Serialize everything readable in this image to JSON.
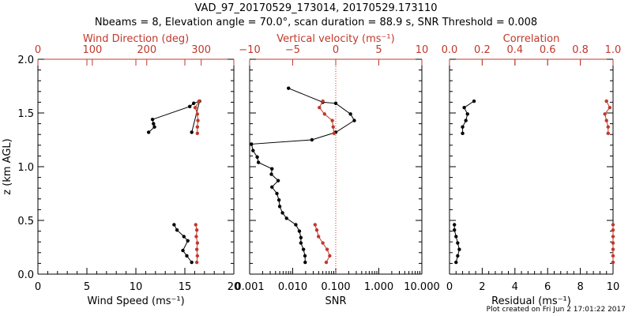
{
  "title_line1": "VAD_97_20170529_173014, 20170529.173110",
  "title_line2": "Nbeams = 8, Elevation angle = 70.0°, scan duration = 88.9 s, SNR Threshold = 0.008",
  "footer": "Plot created on Fri Jun  2 17:01:22 2017",
  "colors": {
    "axis": "#000000",
    "secondary": "#c0392b",
    "primary_series": "#000000"
  },
  "chart_data": [
    {
      "type": "scatter",
      "ylabel": "z (km AGL)",
      "ylim": [
        0.0,
        2.0
      ],
      "yticks": [
        "0.0",
        "0.5",
        "1.0",
        "1.5",
        "2.0"
      ],
      "xlabel": "Wind Speed (ms⁻¹)",
      "xlim": [
        0,
        20
      ],
      "xticks": [
        "0",
        "5",
        "10",
        "15",
        "20"
      ],
      "xlabel_top": "Wind Direction (deg)",
      "xlim_top": [
        0,
        360
      ],
      "xticks_top": [
        "0",
        "100",
        "200",
        "300"
      ],
      "series": [
        {
          "axis": "bottom",
          "color": "#000000",
          "segments": [
            [
              {
                "x": 15.7,
                "y": 1.32
              },
              {
                "x": 16.5,
                "y": 1.61
              },
              {
                "x": 15.9,
                "y": 1.59
              },
              {
                "x": 15.5,
                "y": 1.56
              },
              {
                "x": 11.7,
                "y": 1.44
              },
              {
                "x": 11.8,
                "y": 1.4
              },
              {
                "x": 11.9,
                "y": 1.37
              },
              {
                "x": 11.3,
                "y": 1.32
              }
            ],
            [
              {
                "x": 15.7,
                "y": 0.11
              },
              {
                "x": 15.2,
                "y": 0.17
              },
              {
                "x": 14.8,
                "y": 0.22
              },
              {
                "x": 15.3,
                "y": 0.31
              },
              {
                "x": 14.9,
                "y": 0.35
              },
              {
                "x": 14.2,
                "y": 0.41
              },
              {
                "x": 13.9,
                "y": 0.46
              }
            ]
          ]
        },
        {
          "axis": "top",
          "color": "#c0392b",
          "segments": [
            [
              {
                "x": 296,
                "y": 1.61
              },
              {
                "x": 289,
                "y": 1.55
              },
              {
                "x": 293,
                "y": 1.49
              },
              {
                "x": 294,
                "y": 1.43
              },
              {
                "x": 293,
                "y": 1.37
              },
              {
                "x": 293,
                "y": 1.31
              }
            ],
            [
              {
                "x": 292,
                "y": 0.11
              },
              {
                "x": 293,
                "y": 0.17
              },
              {
                "x": 292,
                "y": 0.23
              },
              {
                "x": 293,
                "y": 0.29
              },
              {
                "x": 291,
                "y": 0.35
              },
              {
                "x": 292,
                "y": 0.41
              },
              {
                "x": 290,
                "y": 0.46
              }
            ]
          ]
        }
      ]
    },
    {
      "type": "scatter",
      "ylim": [
        0.0,
        2.0
      ],
      "xlabel": "SNR",
      "xscale": "log",
      "xlim": [
        0.001,
        10
      ],
      "xticks": [
        "0.001",
        "0.010",
        "0.100",
        "1.000",
        "10.000"
      ],
      "xlabel_top": "Vertical velocity (ms⁻¹)",
      "xlim_top": [
        -10,
        10
      ],
      "xticks_top": [
        "−10",
        "−5",
        "0",
        "5",
        "10"
      ],
      "reference_line_top": 0,
      "series": [
        {
          "axis": "bottom",
          "color": "#000000",
          "segments": [
            [
              {
                "x": 0.008,
                "y": 1.73
              },
              {
                "x": 0.05,
                "y": 1.6
              },
              {
                "x": 0.1,
                "y": 1.59
              },
              {
                "x": 0.22,
                "y": 1.49
              },
              {
                "x": 0.27,
                "y": 1.43
              },
              {
                "x": 0.1,
                "y": 1.32
              },
              {
                "x": 0.028,
                "y": 1.25
              },
              {
                "x": 0.0011,
                "y": 1.21
              },
              {
                "x": 0.0012,
                "y": 1.15
              },
              {
                "x": 0.0015,
                "y": 1.09
              },
              {
                "x": 0.0016,
                "y": 1.04
              },
              {
                "x": 0.0033,
                "y": 0.98
              },
              {
                "x": 0.0032,
                "y": 0.93
              },
              {
                "x": 0.0046,
                "y": 0.87
              },
              {
                "x": 0.0033,
                "y": 0.81
              },
              {
                "x": 0.0043,
                "y": 0.75
              },
              {
                "x": 0.0048,
                "y": 0.69
              },
              {
                "x": 0.005,
                "y": 0.63
              },
              {
                "x": 0.0058,
                "y": 0.57
              },
              {
                "x": 0.0072,
                "y": 0.52
              },
              {
                "x": 0.0118,
                "y": 0.46
              },
              {
                "x": 0.0143,
                "y": 0.4
              },
              {
                "x": 0.0155,
                "y": 0.34
              },
              {
                "x": 0.0155,
                "y": 0.29
              },
              {
                "x": 0.0178,
                "y": 0.23
              },
              {
                "x": 0.0193,
                "y": 0.17
              },
              {
                "x": 0.0195,
                "y": 0.11
              }
            ]
          ]
        },
        {
          "axis": "top",
          "color": "#c0392b",
          "segments": [
            [
              {
                "x": -1.5,
                "y": 1.61
              },
              {
                "x": -1.9,
                "y": 1.55
              },
              {
                "x": -1.3,
                "y": 1.49
              },
              {
                "x": -0.4,
                "y": 1.43
              },
              {
                "x": -0.3,
                "y": 1.37
              },
              {
                "x": -0.2,
                "y": 1.31
              }
            ],
            [
              {
                "x": -1.1,
                "y": 0.11
              },
              {
                "x": -0.7,
                "y": 0.17
              },
              {
                "x": -1.0,
                "y": 0.23
              },
              {
                "x": -1.5,
                "y": 0.29
              },
              {
                "x": -2.0,
                "y": 0.35
              },
              {
                "x": -2.2,
                "y": 0.41
              },
              {
                "x": -2.4,
                "y": 0.46
              }
            ]
          ]
        }
      ]
    },
    {
      "type": "scatter",
      "ylim": [
        0.0,
        2.0
      ],
      "xlabel": "Residual (ms⁻¹)",
      "xlim": [
        0,
        10
      ],
      "xticks": [
        "0",
        "2",
        "4",
        "6",
        "8",
        "10"
      ],
      "xlabel_top": "Correlation",
      "xlim_top": [
        0.0,
        1.0
      ],
      "xticks_top": [
        "0.0",
        "0.2",
        "0.4",
        "0.6",
        "0.8",
        "1.0"
      ],
      "series": [
        {
          "axis": "bottom",
          "color": "#000000",
          "segments": [
            [
              {
                "x": 1.5,
                "y": 1.61
              },
              {
                "x": 0.9,
                "y": 1.55
              },
              {
                "x": 1.1,
                "y": 1.49
              },
              {
                "x": 1.0,
                "y": 1.43
              },
              {
                "x": 0.8,
                "y": 1.37
              },
              {
                "x": 0.8,
                "y": 1.31
              }
            ],
            [
              {
                "x": 0.3,
                "y": 0.46
              },
              {
                "x": 0.3,
                "y": 0.41
              },
              {
                "x": 0.4,
                "y": 0.35
              },
              {
                "x": 0.5,
                "y": 0.29
              },
              {
                "x": 0.6,
                "y": 0.23
              },
              {
                "x": 0.5,
                "y": 0.17
              },
              {
                "x": 0.4,
                "y": 0.11
              }
            ]
          ]
        },
        {
          "axis": "top",
          "color": "#c0392b",
          "segments": [
            [
              {
                "x": 0.96,
                "y": 1.61
              },
              {
                "x": 0.98,
                "y": 1.55
              },
              {
                "x": 0.95,
                "y": 1.49
              },
              {
                "x": 0.96,
                "y": 1.43
              },
              {
                "x": 0.97,
                "y": 1.37
              },
              {
                "x": 0.97,
                "y": 1.31
              }
            ],
            [
              {
                "x": 1.0,
                "y": 0.46
              },
              {
                "x": 1.0,
                "y": 0.41
              },
              {
                "x": 1.0,
                "y": 0.35
              },
              {
                "x": 1.0,
                "y": 0.29
              },
              {
                "x": 1.0,
                "y": 0.23
              },
              {
                "x": 1.0,
                "y": 0.17
              },
              {
                "x": 1.0,
                "y": 0.11
              }
            ]
          ]
        }
      ]
    }
  ]
}
